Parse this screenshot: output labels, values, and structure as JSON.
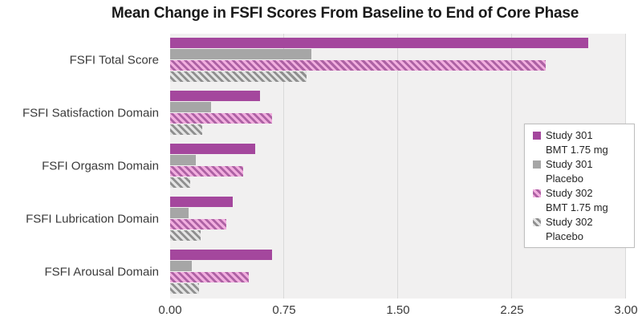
{
  "title": "Mean Change in FSFI Scores From Baseline to End of Core Phase",
  "colors": {
    "purple": "#A4479D",
    "gray": "#A6A6A6",
    "pink_hatch_bg": "#F2AEDF",
    "pink_hatch_stripe": "#AD62A4",
    "gray_hatch_bg": "#E4E4E4",
    "gray_hatch_stripe": "#8F8F8F",
    "plot_bg": "#F1F0F0",
    "gridline": "#D9D9D9"
  },
  "chart_data": {
    "type": "bar",
    "orientation": "horizontal",
    "title": "Mean Change in FSFI Scores From Baseline to End of Core Phase",
    "xlabel": "",
    "ylabel": "",
    "xlim": [
      0,
      3.0
    ],
    "x_ticks": [
      "0.00",
      "0.75",
      "1.50",
      "2.25",
      "3.00"
    ],
    "grid": true,
    "legend_position": "right",
    "categories": [
      "FSFI Total Score",
      "FSFI Satisfaction Domain",
      "FSFI Orgasm Domain",
      "FSFI Lubrication Domain",
      "FSFI Arousal Domain"
    ],
    "series": [
      {
        "name": "Study 301 BMT 1.75 mg",
        "legend_lines": [
          "Study 301",
          "BMT 1.75 mg"
        ],
        "style": "solid-purple",
        "values": [
          2.75,
          0.59,
          0.56,
          0.41,
          0.67
        ]
      },
      {
        "name": "Study 301 Placebo",
        "legend_lines": [
          "Study 301",
          "Placebo"
        ],
        "style": "solid-gray",
        "values": [
          0.93,
          0.27,
          0.17,
          0.12,
          0.14
        ]
      },
      {
        "name": "Study 302 BMT 1.75 mg",
        "legend_lines": [
          "Study 302",
          "BMT 1.75 mg"
        ],
        "style": "hatched-pink",
        "values": [
          2.47,
          0.67,
          0.48,
          0.37,
          0.52
        ]
      },
      {
        "name": "Study 302 Placebo",
        "legend_lines": [
          "Study 302",
          "Placebo"
        ],
        "style": "hatched-gray",
        "values": [
          0.9,
          0.21,
          0.13,
          0.2,
          0.19
        ]
      }
    ]
  }
}
